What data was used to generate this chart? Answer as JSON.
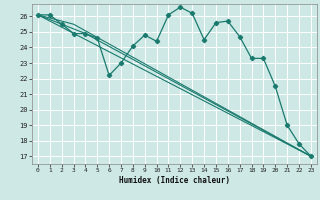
{
  "xlabel": "Humidex (Indice chaleur)",
  "background_color": "#cde8e5",
  "grid_color": "#ffffff",
  "line_color": "#1a7a6e",
  "xlim": [
    -0.5,
    23.5
  ],
  "ylim": [
    16.5,
    26.8
  ],
  "yticks": [
    17,
    18,
    19,
    20,
    21,
    22,
    23,
    24,
    25,
    26
  ],
  "xticks": [
    0,
    1,
    2,
    3,
    4,
    5,
    6,
    7,
    8,
    9,
    10,
    11,
    12,
    13,
    14,
    15,
    16,
    17,
    18,
    19,
    20,
    21,
    22,
    23
  ],
  "series": [
    {
      "x": [
        0,
        1,
        2,
        3,
        4,
        5,
        6,
        7,
        8,
        9,
        10,
        11,
        12,
        13,
        14,
        15,
        16,
        17,
        18,
        19,
        20,
        21,
        22,
        23
      ],
      "y": [
        26.1,
        26.1,
        25.5,
        24.9,
        24.9,
        24.6,
        22.2,
        23.0,
        24.1,
        24.8,
        24.4,
        26.1,
        26.6,
        26.2,
        24.5,
        25.6,
        25.7,
        24.7,
        23.3,
        23.3,
        21.5,
        19.0,
        17.8,
        17.0
      ],
      "markers": true
    },
    {
      "x": [
        0,
        23
      ],
      "y": [
        26.1,
        17.0
      ],
      "markers": false
    },
    {
      "x": [
        0,
        3,
        23
      ],
      "y": [
        26.1,
        25.5,
        17.0
      ],
      "markers": false
    },
    {
      "x": [
        0,
        4,
        23
      ],
      "y": [
        26.1,
        24.9,
        17.0
      ],
      "markers": false
    }
  ]
}
